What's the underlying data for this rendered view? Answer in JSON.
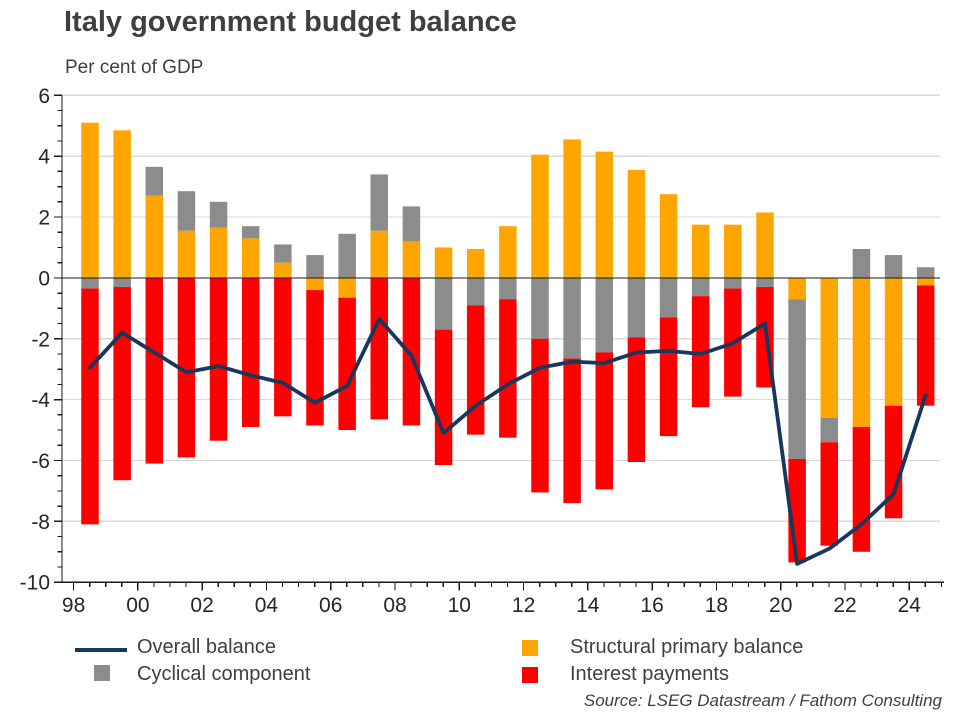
{
  "title": "Italy government budget balance",
  "subtitle": "Per cent of GDP",
  "source": "Source: LSEG Datastream / Fathom Consulting",
  "colors": {
    "structural_primary_balance": "#FFA500",
    "cyclical_component": "#8C8C8C",
    "interest_payments": "#FF0000",
    "overall_balance_line": "#17375D",
    "gridline": "#D9D9D9",
    "axis": "#1a1a1a",
    "text": "#3f3f3f"
  },
  "chart_data": {
    "type": "bar",
    "stacked": true,
    "title": "Italy government budget balance",
    "subtitle": "Per cent of GDP",
    "xlabel": "",
    "ylabel": "Per cent of GDP",
    "ylim": [
      -10,
      6
    ],
    "y_ticks": [
      6,
      4,
      2,
      0,
      -2,
      -4,
      -6,
      -8,
      -10
    ],
    "grid": "horizontal",
    "legend_position": "bottom",
    "categories": [
      1998,
      1999,
      2000,
      2001,
      2002,
      2003,
      2004,
      2005,
      2006,
      2007,
      2008,
      2009,
      2010,
      2011,
      2012,
      2013,
      2014,
      2015,
      2016,
      2017,
      2018,
      2019,
      2020,
      2021,
      2022,
      2023,
      2024
    ],
    "x_tick_labels": [
      "98",
      "00",
      "02",
      "04",
      "06",
      "08",
      "10",
      "12",
      "14",
      "16",
      "18",
      "20",
      "22",
      "24"
    ],
    "series": [
      {
        "name": "Structural primary balance",
        "type": "bar",
        "color": "#FFA500",
        "values": [
          5.1,
          4.85,
          2.7,
          1.55,
          1.65,
          1.3,
          0.5,
          -0.4,
          -0.65,
          1.55,
          1.2,
          1.0,
          0.95,
          1.7,
          4.05,
          4.55,
          4.15,
          3.55,
          2.75,
          1.75,
          1.75,
          2.15,
          -0.7,
          -4.6,
          -4.9,
          -4.2,
          -0.25
        ]
      },
      {
        "name": "Cyclical component",
        "type": "bar",
        "color": "#8C8C8C",
        "values": [
          -0.35,
          -0.3,
          0.95,
          1.3,
          0.85,
          0.4,
          0.6,
          0.75,
          1.45,
          1.85,
          1.15,
          -1.7,
          -0.9,
          -0.7,
          -2.0,
          -2.65,
          -2.45,
          -1.95,
          -1.3,
          -0.6,
          -0.35,
          -0.3,
          -5.25,
          -0.8,
          0.95,
          0.75,
          0.35
        ]
      },
      {
        "name": "Interest payments",
        "type": "bar",
        "color": "#FF0000",
        "values": [
          -7.75,
          -6.35,
          -6.1,
          -5.9,
          -5.35,
          -4.9,
          -4.55,
          -4.45,
          -4.35,
          -4.65,
          -4.85,
          -4.45,
          -4.25,
          -4.55,
          -5.05,
          -4.75,
          -4.5,
          -4.1,
          -3.9,
          -3.65,
          -3.55,
          -3.3,
          -3.4,
          -3.4,
          -4.1,
          -3.7,
          -3.95
        ]
      },
      {
        "name": "Overall balance",
        "type": "line",
        "color": "#17375D",
        "values": [
          -2.95,
          -1.8,
          -2.45,
          -3.1,
          -2.9,
          -3.2,
          -3.45,
          -4.1,
          -3.55,
          -1.35,
          -2.55,
          -5.1,
          -4.2,
          -3.5,
          -2.95,
          -2.75,
          -2.8,
          -2.45,
          -2.4,
          -2.5,
          -2.15,
          -1.5,
          -9.4,
          -8.9,
          -8.1,
          -7.1,
          -3.85
        ]
      }
    ]
  }
}
